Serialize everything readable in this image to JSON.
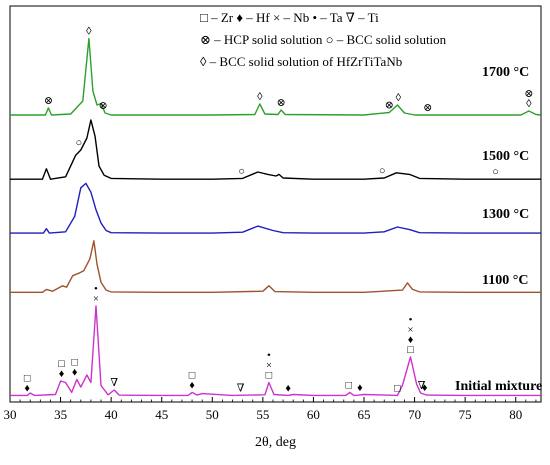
{
  "chart_data": {
    "type": "line",
    "title": "",
    "xlabel": "2θ, deg",
    "ylabel": "",
    "xlim": [
      30,
      82.5
    ],
    "x_ticks": [
      30,
      35,
      40,
      45,
      50,
      55,
      60,
      65,
      70,
      75,
      80
    ],
    "grid": false,
    "legend_position": "top",
    "legend": [
      "□ – Zr ♦ – Hf × – Nb • – Ta ∇ – Ti",
      "⊗ – HCP solid solution ○ – BCC solid solution",
      "◊ – BCC solid solution of HfZrTiTaNb"
    ],
    "series": [
      {
        "name": "1700 °C",
        "color": "#2ca02c",
        "x": [
          30,
          33.5,
          33.8,
          34.1,
          36,
          37.2,
          37.8,
          38.2,
          38.6,
          39.0,
          39.4,
          40.0,
          45,
          50,
          54.2,
          54.7,
          55.2,
          56.5,
          56.8,
          57.2,
          65,
          67.5,
          68.3,
          69.0,
          70,
          75,
          80.5,
          81.3,
          82,
          82.5
        ],
        "y": [
          0.02,
          0.02,
          0.16,
          0.02,
          0.04,
          0.3,
          1.55,
          0.5,
          0.22,
          0.25,
          0.06,
          0.02,
          0.02,
          0.02,
          0.03,
          0.24,
          0.04,
          0.03,
          0.12,
          0.03,
          0.02,
          0.07,
          0.22,
          0.06,
          0.02,
          0.02,
          0.02,
          0.1,
          0.03,
          0.02
        ]
      },
      {
        "name": "1500 °C",
        "color": "#000000",
        "x": [
          30,
          33.2,
          33.6,
          34.0,
          35.5,
          36.5,
          37.0,
          37.6,
          38.0,
          38.4,
          38.8,
          39.3,
          40,
          45,
          50,
          53,
          54.5,
          55.5,
          56.3,
          56.6,
          57,
          60,
          65,
          67,
          68.2,
          69.5,
          70.5,
          75,
          82.5
        ],
        "y": [
          0.02,
          0.02,
          0.28,
          0.02,
          0.08,
          0.62,
          0.75,
          1.05,
          1.5,
          1.1,
          0.35,
          0.12,
          0.04,
          0.02,
          0.02,
          0.04,
          0.2,
          0.14,
          0.1,
          0.14,
          0.05,
          0.02,
          0.02,
          0.05,
          0.18,
          0.14,
          0.04,
          0.02,
          0.02
        ]
      },
      {
        "name": "1300 °C",
        "color": "#1f1fbf",
        "x": [
          30,
          33.3,
          33.6,
          33.9,
          35.5,
          36.4,
          37.0,
          37.5,
          38.0,
          38.5,
          39.0,
          39.5,
          40,
          45,
          50,
          53,
          54.5,
          56,
          57,
          60,
          65,
          67,
          68.3,
          69.5,
          70.5,
          75,
          82.5
        ],
        "y": [
          0.02,
          0.02,
          0.12,
          0.02,
          0.05,
          0.4,
          1.05,
          1.15,
          0.95,
          0.55,
          0.25,
          0.08,
          0.03,
          0.02,
          0.02,
          0.04,
          0.18,
          0.08,
          0.03,
          0.02,
          0.02,
          0.05,
          0.16,
          0.1,
          0.03,
          0.02,
          0.02
        ]
      },
      {
        "name": "1100 °C",
        "color": "#a0522d",
        "x": [
          30,
          33.2,
          33.6,
          34.2,
          35.2,
          35.6,
          36.2,
          36.8,
          37.3,
          37.9,
          38.3,
          38.6,
          39.0,
          39.5,
          40,
          45,
          50,
          55,
          55.6,
          56.2,
          60,
          65,
          68.8,
          69.3,
          69.8,
          70.5,
          75,
          82.5
        ],
        "y": [
          0.02,
          0.02,
          0.1,
          0.05,
          0.2,
          0.16,
          0.48,
          0.55,
          0.62,
          0.95,
          1.45,
          0.8,
          0.3,
          0.08,
          0.03,
          0.02,
          0.02,
          0.05,
          0.2,
          0.04,
          0.02,
          0.02,
          0.08,
          0.28,
          0.1,
          0.03,
          0.02,
          0.02
        ]
      },
      {
        "name": "Initial mixture",
        "color": "#cc33cc",
        "x": [
          30,
          31.7,
          32.0,
          32.4,
          34.5,
          35.0,
          35.5,
          36.1,
          36.6,
          37.0,
          37.6,
          38.0,
          38.5,
          39.0,
          39.7,
          40.3,
          40.8,
          45,
          47.6,
          48.0,
          48.5,
          49.0,
          52,
          55.2,
          55.6,
          56.1,
          57.5,
          58.0,
          60,
          63.2,
          63.6,
          64.0,
          64.5,
          65.0,
          68.3,
          68.8,
          69.6,
          70.2,
          70.6,
          71.2,
          75,
          82.5
        ],
        "y": [
          0.02,
          0.02,
          0.1,
          0.02,
          0.05,
          0.5,
          0.45,
          0.12,
          0.55,
          0.3,
          0.7,
          0.45,
          3.0,
          0.35,
          0.04,
          0.2,
          0.03,
          0.02,
          0.02,
          0.12,
          0.03,
          0.08,
          0.02,
          0.04,
          0.45,
          0.05,
          0.02,
          0.05,
          0.02,
          0.02,
          0.12,
          0.02,
          0.03,
          0.05,
          0.02,
          0.35,
          1.3,
          0.4,
          0.1,
          0.03,
          0.02,
          0.02
        ]
      }
    ],
    "series_labels": [
      "1700 °C",
      "1500 °C",
      "1300 °C",
      "1100 °C",
      "Initial mixture"
    ],
    "phase_markers": [
      {
        "x": 31.7,
        "series": 4,
        "symbols": [
          "□",
          "♦"
        ]
      },
      {
        "x": 35.1,
        "series": 4,
        "symbols": [
          "□",
          "♦"
        ]
      },
      {
        "x": 36.4,
        "series": 4,
        "symbols": [
          "□",
          "♦"
        ]
      },
      {
        "x": 38.5,
        "series": 4,
        "symbols": [
          "•",
          "×"
        ]
      },
      {
        "x": 40.3,
        "series": 4,
        "symbols": [
          "∇"
        ]
      },
      {
        "x": 48.0,
        "series": 4,
        "symbols": [
          "□",
          "♦"
        ]
      },
      {
        "x": 52.8,
        "series": 4,
        "symbols": [
          "∇"
        ]
      },
      {
        "x": 55.6,
        "series": 4,
        "symbols": [
          "•",
          "×",
          "□"
        ]
      },
      {
        "x": 57.5,
        "series": 4,
        "symbols": [
          "♦"
        ]
      },
      {
        "x": 63.5,
        "series": 4,
        "symbols": [
          "□"
        ]
      },
      {
        "x": 64.6,
        "series": 4,
        "symbols": [
          "♦"
        ]
      },
      {
        "x": 68.3,
        "series": 4,
        "symbols": [
          "□"
        ]
      },
      {
        "x": 69.6,
        "series": 4,
        "symbols": [
          "•",
          "×",
          "♦",
          "□"
        ]
      },
      {
        "x": 70.7,
        "series": 4,
        "symbols": [
          "∇"
        ]
      },
      {
        "x": 71.0,
        "series": 4,
        "symbols": [
          "♦"
        ]
      },
      {
        "x": 33.8,
        "series": 0,
        "symbols": [
          "⊗"
        ]
      },
      {
        "x": 37.8,
        "series": 0,
        "symbols": [
          "◊"
        ]
      },
      {
        "x": 39.2,
        "series": 0,
        "symbols": [
          "⊗"
        ]
      },
      {
        "x": 54.7,
        "series": 0,
        "symbols": [
          "◊"
        ]
      },
      {
        "x": 56.8,
        "series": 0,
        "symbols": [
          "⊗"
        ]
      },
      {
        "x": 67.5,
        "series": 0,
        "symbols": [
          "⊗"
        ]
      },
      {
        "x": 68.4,
        "series": 0,
        "symbols": [
          "◊"
        ]
      },
      {
        "x": 71.3,
        "series": 0,
        "symbols": [
          "⊗"
        ]
      },
      {
        "x": 81.3,
        "series": 0,
        "symbols": [
          "⊗",
          "◊"
        ]
      },
      {
        "x": 36.8,
        "series": 1,
        "symbols": [
          "○"
        ]
      },
      {
        "x": 52.9,
        "series": 1,
        "symbols": [
          "○"
        ]
      },
      {
        "x": 66.8,
        "series": 1,
        "symbols": [
          "○"
        ]
      },
      {
        "x": 78.0,
        "series": 1,
        "symbols": [
          "○"
        ]
      }
    ]
  }
}
